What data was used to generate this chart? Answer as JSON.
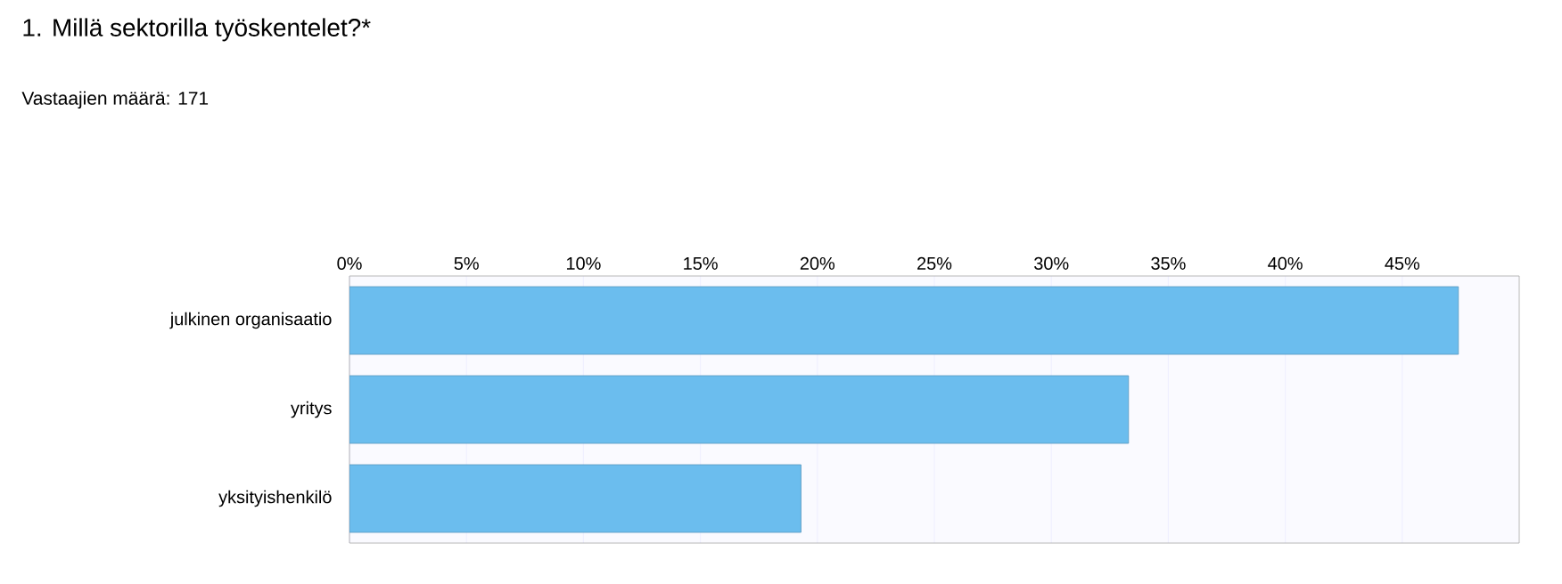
{
  "chart_data": {
    "type": "bar",
    "orientation": "horizontal",
    "title": "1. Millä sektorilla työskentelet?*",
    "subtitle": "Vastaajien määrä: 171",
    "categories": [
      "julkinen organisaatio",
      "yritys",
      "yksityishenkilö"
    ],
    "values": [
      47.4,
      33.3,
      19.3
    ],
    "color": "#6bbdee",
    "xlim": [
      0,
      50
    ],
    "xticks": [
      {
        "value": 0,
        "label": "0%"
      },
      {
        "value": 5,
        "label": "5%"
      },
      {
        "value": 10,
        "label": "10%"
      },
      {
        "value": 15,
        "label": "15%"
      },
      {
        "value": 20,
        "label": "20%"
      },
      {
        "value": 25,
        "label": "25%"
      },
      {
        "value": 30,
        "label": "30%"
      },
      {
        "value": 35,
        "label": "35%"
      },
      {
        "value": 40,
        "label": "40%"
      },
      {
        "value": 45,
        "label": "45%"
      }
    ],
    "grid": "x"
  }
}
